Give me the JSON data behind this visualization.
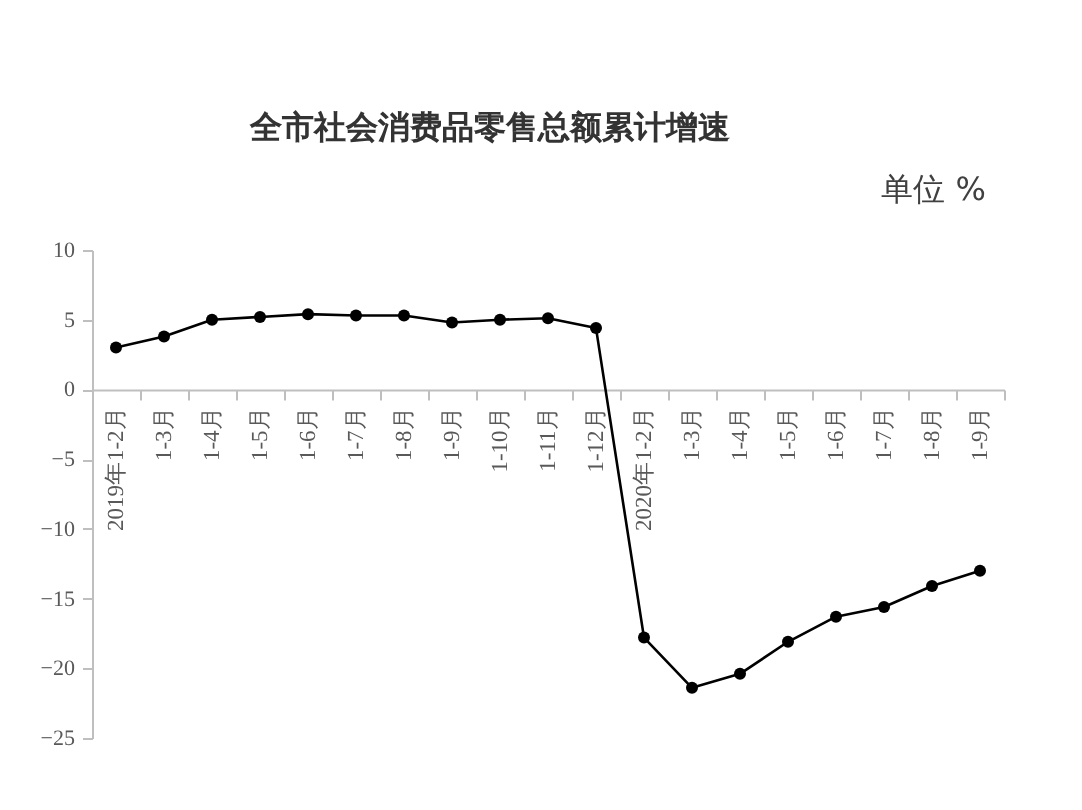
{
  "chart_data": {
    "type": "line",
    "title": "全市社会消费品零售总额累计增速",
    "annotations": [
      "单位 %"
    ],
    "categories": [
      "2019年1-2月",
      "1-3月",
      "1-4月",
      "1-5月",
      "1-6月",
      "1-7月",
      "1-8月",
      "1-9月",
      "1-10月",
      "1-11月",
      "1-12月",
      "2020年1-2月",
      "1-3月",
      "1-4月",
      "1-5月",
      "1-6月",
      "1-7月",
      "1-8月",
      "1-9月"
    ],
    "values": [
      3.0,
      3.8,
      5.0,
      5.2,
      5.4,
      5.3,
      5.3,
      4.8,
      5.0,
      5.1,
      4.4,
      -17.8,
      -21.4,
      -20.4,
      -18.1,
      -16.3,
      -15.6,
      -14.1,
      -13.0
    ],
    "color": "#000000",
    "ylim": [
      -25,
      10
    ],
    "yticks": [
      -25,
      -20,
      -15,
      -10,
      -5,
      0,
      5,
      10
    ],
    "marker": "circle",
    "line_style": "solid"
  }
}
